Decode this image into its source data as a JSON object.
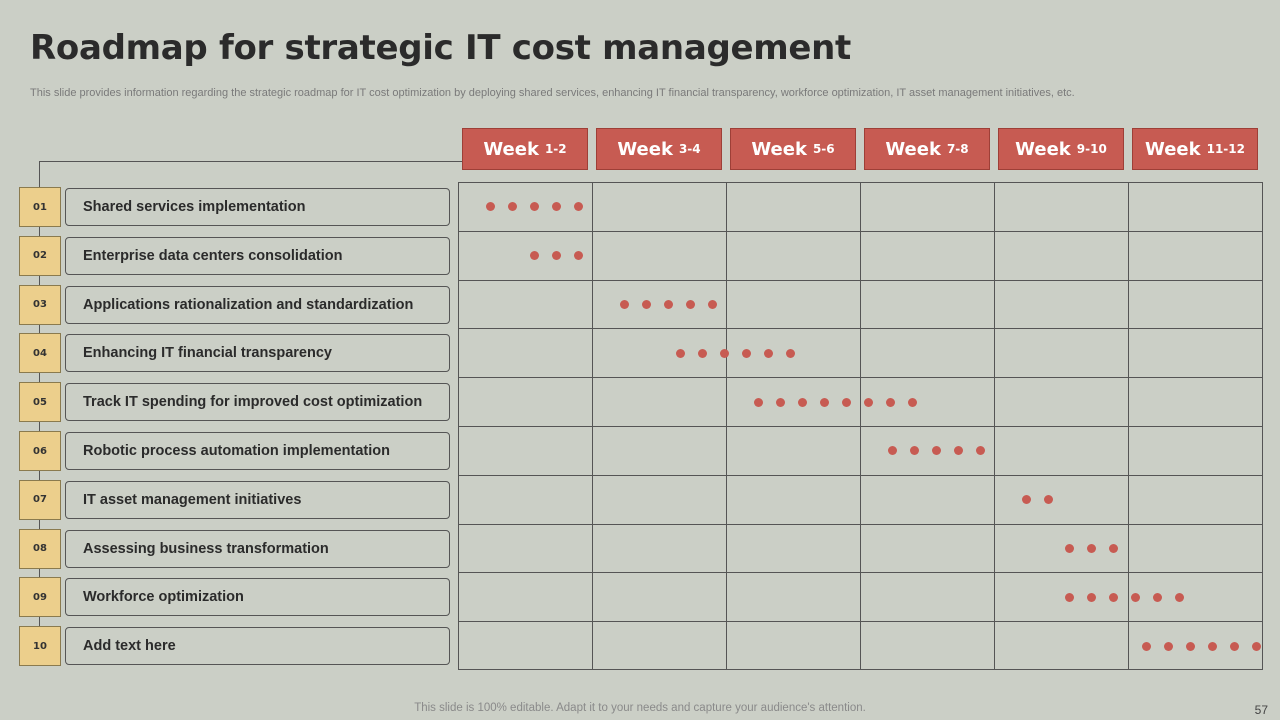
{
  "slide": {
    "title": "Roadmap for strategic IT cost management",
    "subtitle": "This slide provides information regarding the strategic roadmap for IT cost optimization by  deploying shared services, enhancing IT financial transparency, workforce optimization, IT  asset management initiatives, etc.",
    "footer": "This slide is 100% editable. Adapt it to your needs and capture your audience's attention.",
    "page_number": "57"
  },
  "colors": {
    "background": "#cbcfc6",
    "accent_red": "#c75b52",
    "number_tag": "#eccf8c"
  },
  "weeks": [
    {
      "label": "Week",
      "range": "1-2"
    },
    {
      "label": "Week",
      "range": "3-4"
    },
    {
      "label": "Week",
      "range": "5-6"
    },
    {
      "label": "Week",
      "range": "7-8"
    },
    {
      "label": "Week",
      "range": "9-10"
    },
    {
      "label": "Week",
      "range": "11-12"
    }
  ],
  "tasks": [
    {
      "num": "01",
      "label": "Shared services implementation",
      "dots_start_week": 0.2,
      "dot_count": 5
    },
    {
      "num": "02",
      "label": "Enterprise data centers consolidation",
      "dots_start_week": 0.53,
      "dot_count": 3
    },
    {
      "num": "03",
      "label": "Applications  rationalization and standardization",
      "dots_start_week": 1.2,
      "dot_count": 5
    },
    {
      "num": "04",
      "label": "Enhancing IT financial transparency",
      "dots_start_week": 1.62,
      "dot_count": 6
    },
    {
      "num": "05",
      "label": "Track IT spending for improved cost optimization",
      "dots_start_week": 2.2,
      "dot_count": 8
    },
    {
      "num": "06",
      "label": "Robotic process automation implementation",
      "dots_start_week": 3.2,
      "dot_count": 5
    },
    {
      "num": "07",
      "label": "IT asset management  initiatives",
      "dots_start_week": 4.2,
      "dot_count": 2
    },
    {
      "num": "08",
      "label": "Assessing business transformation",
      "dots_start_week": 4.52,
      "dot_count": 3
    },
    {
      "num": "09",
      "label": "Workforce optimization",
      "dots_start_week": 4.52,
      "dot_count": 6
    },
    {
      "num": "10",
      "label": "Add  text here",
      "dots_start_week": 5.1,
      "dot_count": 6
    }
  ]
}
